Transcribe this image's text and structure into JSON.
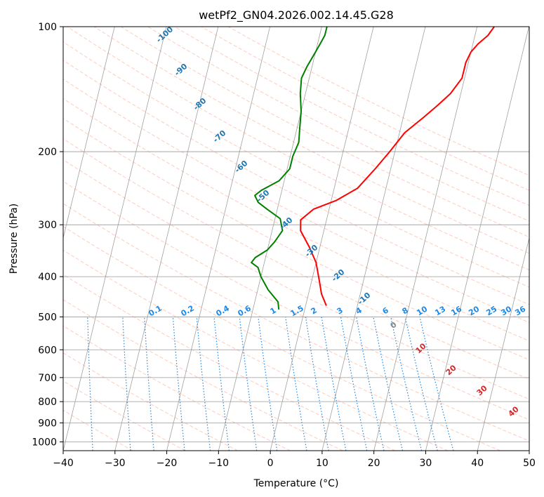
{
  "chart_data": {
    "type": "line",
    "title": "wetPf2_GN04.2026.002.14.45.G28",
    "xlabel": "Temperature (°C)",
    "ylabel": "Pressure (hPa)",
    "xlim": [
      -40,
      50
    ],
    "ylim": [
      1050,
      100
    ],
    "y_scale": "log",
    "x_ticks": [
      -40,
      -30,
      -20,
      -10,
      0,
      10,
      20,
      30,
      40,
      50
    ],
    "y_ticks": [
      1000,
      900,
      800,
      700,
      600,
      500,
      400,
      300,
      200,
      100
    ],
    "grid": true,
    "skew": "skewed isotherms",
    "series": [
      {
        "color": "#ff0000",
        "points": [
          [
            4,
            470
          ],
          [
            2.5,
            440
          ],
          [
            1.5,
            410
          ],
          [
            0,
            370
          ],
          [
            -2,
            340
          ],
          [
            -4.5,
            310
          ],
          [
            -5,
            292
          ],
          [
            -3,
            275
          ],
          [
            1,
            262
          ],
          [
            4.5,
            245
          ],
          [
            7,
            220
          ],
          [
            9,
            200
          ],
          [
            11,
            180
          ],
          [
            14,
            165
          ],
          [
            16,
            155
          ],
          [
            18,
            145
          ],
          [
            19.5,
            133
          ],
          [
            19.5,
            122
          ],
          [
            20,
            115
          ],
          [
            21,
            110
          ],
          [
            22.5,
            105
          ],
          [
            23.3,
            100
          ]
        ]
      },
      {
        "color": "#008000",
        "points": [
          [
            -5,
            480
          ],
          [
            -5.5,
            460
          ],
          [
            -8,
            430
          ],
          [
            -10,
            400
          ],
          [
            -11,
            380
          ],
          [
            -12.5,
            370
          ],
          [
            -12,
            360
          ],
          [
            -10,
            345
          ],
          [
            -9,
            330
          ],
          [
            -8,
            310
          ],
          [
            -9,
            290
          ],
          [
            -12,
            275
          ],
          [
            -14,
            265
          ],
          [
            -15,
            255
          ],
          [
            -14,
            248
          ],
          [
            -11,
            235
          ],
          [
            -9.5,
            220
          ],
          [
            -9.5,
            205
          ],
          [
            -9,
            190
          ],
          [
            -9.5,
            175
          ],
          [
            -10,
            160
          ],
          [
            -11,
            145
          ],
          [
            -11.5,
            133
          ],
          [
            -11,
            125
          ],
          [
            -10,
            115
          ],
          [
            -9.5,
            110
          ],
          [
            -9,
            105
          ],
          [
            -9,
            100
          ]
        ]
      }
    ],
    "isotherm_labels": [
      "-100",
      "-90",
      "-80",
      "-70",
      "-60",
      "-50",
      "-40",
      "-30",
      "-20",
      "-10"
    ],
    "mixing_ratio_labels": [
      "0.1",
      "0.2",
      "0.4",
      "0.6",
      "1",
      "1.5",
      "2",
      "3",
      "4",
      "6",
      "8",
      "10",
      "13",
      "16",
      "20",
      "25",
      "30",
      "36"
    ],
    "isotherm_labels_lower": [
      "0",
      "10",
      "20",
      "30",
      "40"
    ]
  }
}
